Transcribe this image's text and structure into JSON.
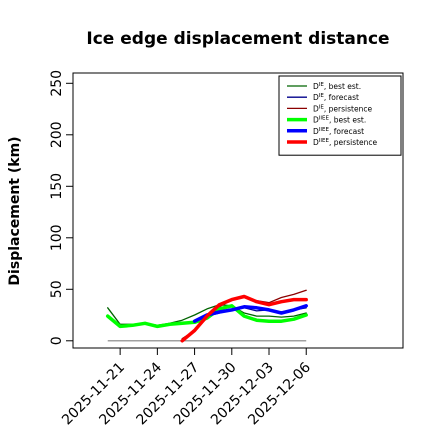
{
  "chart_data": {
    "type": "line",
    "title": "Ice edge displacement distance",
    "xlabel": "",
    "ylabel": "Displacement (km)",
    "ylim": [
      -7,
      260
    ],
    "xlim": [
      -2.8,
      23.8
    ],
    "y_ticks": [
      0,
      50,
      100,
      150,
      200,
      250
    ],
    "x_ticks": [
      {
        "label": "2025-11-21",
        "x": 1,
        "color": "#000000"
      },
      {
        "label": "2025-11-24",
        "x": 4,
        "color": "#000000"
      },
      {
        "label": "2025-11-27",
        "x": 7,
        "color": "#228b22"
      },
      {
        "label": "2025-11-30",
        "x": 10,
        "color": "#000000"
      },
      {
        "label": "2025-12-03",
        "x": 13,
        "color": "#000000"
      },
      {
        "label": "2025-12-06",
        "x": 16,
        "color": "#000000"
      }
    ],
    "x_units": "days since 2025-11-20",
    "grid": false,
    "legend_position": "top-right",
    "series": [
      {
        "name": "D^IE, best est.",
        "color": "#006400",
        "width": 1.3,
        "x": [
          0,
          1,
          2,
          3,
          4,
          5,
          6,
          7,
          8,
          9,
          10,
          11,
          12,
          13,
          14,
          15,
          16
        ],
        "y": [
          32,
          16,
          16,
          17,
          15,
          17,
          20,
          25,
          31,
          35,
          34,
          27,
          24,
          24,
          23,
          24,
          27
        ]
      },
      {
        "name": "D^IE, forecast",
        "color": "#00008b",
        "width": 1.3,
        "x": [
          7,
          8,
          9,
          10,
          11,
          12,
          13,
          14,
          15,
          16
        ],
        "y": [
          20,
          24,
          27,
          30,
          32,
          29,
          30,
          28,
          30,
          32
        ]
      },
      {
        "name": "D^IE, persistence",
        "color": "#8b0000",
        "width": 1.3,
        "x": [
          6,
          7,
          8,
          9,
          10,
          11,
          12,
          13,
          14,
          15,
          16
        ],
        "y": [
          2,
          10,
          22,
          33,
          40,
          43,
          39,
          37,
          42,
          45,
          49
        ]
      },
      {
        "name": "D^IIEE, best est.",
        "color": "#00ff00",
        "width": 3.5,
        "x": [
          0,
          1,
          2,
          3,
          4,
          5,
          6,
          7,
          8,
          9,
          10,
          11,
          12,
          13,
          14,
          15,
          16
        ],
        "y": [
          24,
          14,
          15,
          17,
          14,
          16,
          17,
          18,
          22,
          31,
          34,
          24,
          20,
          19,
          19,
          21,
          25
        ]
      },
      {
        "name": "D^IIEE, forecast",
        "color": "#0000ff",
        "width": 3.5,
        "x": [
          7,
          8,
          9,
          10,
          11,
          12,
          13,
          14,
          15,
          16
        ],
        "y": [
          19,
          25,
          28,
          30,
          33,
          32,
          30,
          27,
          30,
          34
        ]
      },
      {
        "name": "D^IIEE, persistence",
        "color": "#ff0000",
        "width": 3.5,
        "x": [
          6,
          7,
          8,
          9,
          10,
          11,
          12,
          13,
          14,
          15,
          16
        ],
        "y": [
          0,
          10,
          24,
          35,
          40,
          43,
          38,
          35,
          38,
          40,
          40
        ]
      }
    ],
    "reference_lines": [
      {
        "y": 0,
        "x": [
          0,
          16
        ],
        "color": "#808080"
      }
    ]
  }
}
